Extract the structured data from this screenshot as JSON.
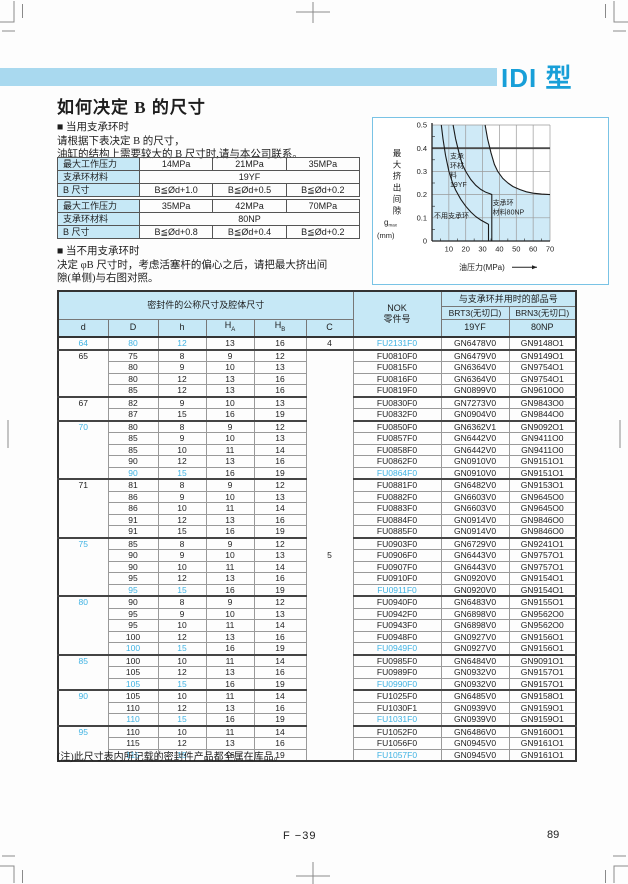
{
  "header": {
    "model": "IDI 型"
  },
  "texts": {
    "title": "如何决定 B 的尺寸",
    "bullet1": "■ 当用支承环时",
    "p1l1": "请根据下表决定 B 的尺寸，",
    "p1l2": "油缸的结构上需要较大的 B 尺寸时,请与本公司联系。",
    "bullet2": "■ 当不用支承环时",
    "p2l1": "决定 φB 尺寸时，考虑活塞杆的偏心之后，请把最大挤出间",
    "p2l2": "隙(单侧)与右图对照。",
    "note": "(注)此尺寸表内所记载的密封件产品都全属在库品。"
  },
  "pressure_tables": [
    {
      "rows": [
        {
          "label": "最大工作压力",
          "cells": [
            "14MPa",
            "21MPa",
            "35MPa"
          ]
        },
        {
          "label": "支承环材料",
          "cells": [
            "19YF"
          ],
          "span": 3
        },
        {
          "label": "B 尺寸",
          "cells": [
            "B≦Ød+1.0",
            "B≦Ød+0.5",
            "B≦Ød+0.2"
          ]
        }
      ]
    },
    {
      "rows": [
        {
          "label": "最大工作压力",
          "cells": [
            "35MPa",
            "42MPa",
            "70MPa"
          ]
        },
        {
          "label": "支承环材料",
          "cells": [
            "80NP"
          ],
          "span": 3
        },
        {
          "label": "B 尺寸",
          "cells": [
            "B≦Ød+0.8",
            "B≦Ød+0.4",
            "B≦Ød+0.2"
          ]
        }
      ]
    }
  ],
  "chart_data": {
    "type": "line",
    "xlabel": "油压力(MPa)",
    "ylabel_vertical": "最大挤出间隙",
    "ylabel_symbol": "g",
    "ylabel_symbol_sub": "max",
    "ylabel_unit": "(mm)",
    "xlim": [
      0,
      70
    ],
    "ylim": [
      0,
      0.5
    ],
    "xticks": [
      10,
      20,
      30,
      40,
      50,
      60,
      70
    ],
    "yticks": [
      0,
      0.1,
      0.2,
      0.3,
      0.4,
      0.5
    ],
    "grid": true,
    "series": [
      {
        "name": "不用支承环",
        "points": [
          [
            5.5,
            0.5
          ],
          [
            6.5,
            0.44
          ],
          [
            8,
            0.37
          ],
          [
            10,
            0.3
          ],
          [
            12,
            0.255
          ],
          [
            14,
            0.22
          ],
          [
            17,
            0.18
          ],
          [
            20,
            0.15
          ],
          [
            23,
            0.125
          ],
          [
            26,
            0.105
          ],
          [
            29,
            0.09
          ],
          [
            32,
            0.078
          ],
          [
            33.5,
            0.072
          ],
          [
            33.5,
            0
          ]
        ]
      },
      {
        "name": "支承环材料19YF",
        "points": [
          [
            12.5,
            0.5
          ],
          [
            14,
            0.44
          ],
          [
            16,
            0.38
          ],
          [
            18,
            0.33
          ],
          [
            20,
            0.3
          ],
          [
            23,
            0.265
          ],
          [
            26,
            0.24
          ],
          [
            29,
            0.222
          ],
          [
            32,
            0.21
          ],
          [
            35,
            0.202
          ],
          [
            35.5,
            0.2
          ],
          [
            35.5,
            0
          ]
        ]
      },
      {
        "name": "支承环材料80NP",
        "points": [
          [
            31.5,
            0.5
          ],
          [
            33,
            0.44
          ],
          [
            35,
            0.38
          ],
          [
            37,
            0.33
          ],
          [
            39,
            0.3
          ],
          [
            42,
            0.27
          ],
          [
            45,
            0.25
          ],
          [
            48,
            0.235
          ],
          [
            52,
            0.222
          ],
          [
            56,
            0.212
          ],
          [
            60,
            0.206
          ],
          [
            65,
            0.202
          ],
          [
            70,
            0.2
          ]
        ]
      }
    ],
    "labels": [
      {
        "lines": [
          "不用支承环"
        ],
        "x": 1.2,
        "y": 0.1
      },
      {
        "lines": [
          "支承",
          "环材",
          "料",
          "19YF"
        ],
        "x": 10.7,
        "y": 0.355
      },
      {
        "lines": [
          "支承环",
          "材料80NP"
        ],
        "x": 36,
        "y": 0.155
      }
    ]
  },
  "main_table": {
    "group_header_left": "密封件的公称尺寸及腔体尺寸",
    "nok_header_line1": "NOK",
    "nok_header_line2": "零件号",
    "group_header_right": "与支承环并用时的部品号",
    "sub_right": [
      "BRT3(无切口)",
      "BRN3(无切口)"
    ],
    "material_right": [
      "19YF",
      "80NP"
    ],
    "col_headers": [
      {
        "base": "d"
      },
      {
        "base": "D"
      },
      {
        "base": "h"
      },
      {
        "base": "H",
        "sub": "A"
      },
      {
        "base": "H",
        "sub": "B"
      },
      {
        "base": "C"
      }
    ],
    "c_col": {
      "first": "4",
      "merged": "5"
    },
    "rows": [
      {
        "d": "64",
        "db": 1,
        "gs": 1,
        "D": "80",
        "h": "12",
        "HA": "13",
        "HB": "16",
        "hl": 1,
        "p": "FU2131F0",
        "g1": "GN6478V0",
        "g2": "GN9148O1"
      },
      {
        "d": "65",
        "db": 0,
        "gs": 1,
        "D": "75",
        "h": "8",
        "HA": "9",
        "HB": "12",
        "hl": 0,
        "p": "FU0810F0",
        "g1": "GN6479V0",
        "g2": "GN9149O1"
      },
      {
        "D": "80",
        "h": "9",
        "HA": "10",
        "HB": "13",
        "hl": 0,
        "p": "FU0815F0",
        "g1": "GN6364V0",
        "g2": "GN9754O1"
      },
      {
        "D": "80",
        "h": "12",
        "HA": "13",
        "HB": "16",
        "hl": 0,
        "p": "FU0816F0",
        "g1": "GN6364V0",
        "g2": "GN9754O1"
      },
      {
        "D": "85",
        "h": "12",
        "HA": "13",
        "HB": "16",
        "hl": 0,
        "p": "FU0819F0",
        "g1": "GN0899V0",
        "g2": "GN9610O0"
      },
      {
        "d": "67",
        "db": 0,
        "gs": 1,
        "D": "82",
        "h": "9",
        "HA": "10",
        "HB": "13",
        "hl": 0,
        "p": "FU0830F0",
        "g1": "GN7273V0",
        "g2": "GN9843O0"
      },
      {
        "D": "87",
        "h": "15",
        "HA": "16",
        "HB": "19",
        "hl": 0,
        "p": "FU0832F0",
        "g1": "GN0904V0",
        "g2": "GN9844O0"
      },
      {
        "d": "70",
        "db": 1,
        "gs": 1,
        "D": "80",
        "h": "8",
        "HA": "9",
        "HB": "12",
        "hl": 0,
        "p": "FU0850F0",
        "g1": "GN6362V1",
        "g2": "GN9092O1"
      },
      {
        "D": "85",
        "h": "9",
        "HA": "10",
        "HB": "13",
        "hl": 0,
        "p": "FU0857F0",
        "g1": "GN6442V0",
        "g2": "GN9411O0"
      },
      {
        "D": "85",
        "h": "10",
        "HA": "11",
        "HB": "14",
        "hl": 0,
        "p": "FU0858F0",
        "g1": "GN6442V0",
        "g2": "GN9411O0"
      },
      {
        "D": "90",
        "h": "12",
        "HA": "13",
        "HB": "16",
        "hl": 0,
        "p": "FU0862F0",
        "g1": "GN0910V0",
        "g2": "GN9151O1"
      },
      {
        "D": "90",
        "h": "15",
        "HA": "16",
        "HB": "19",
        "hl": 1,
        "p": "FU0864F0",
        "g1": "GN0910V0",
        "g2": "GN9151O1"
      },
      {
        "d": "71",
        "db": 0,
        "gs": 1,
        "D": "81",
        "h": "8",
        "HA": "9",
        "HB": "12",
        "hl": 0,
        "p": "FU0881F0",
        "g1": "GN6482V0",
        "g2": "GN9153O1"
      },
      {
        "D": "86",
        "h": "9",
        "HA": "10",
        "HB": "13",
        "hl": 0,
        "p": "FU0882F0",
        "g1": "GN6603V0",
        "g2": "GN9645O0"
      },
      {
        "D": "86",
        "h": "10",
        "HA": "11",
        "HB": "14",
        "hl": 0,
        "p": "FU0883F0",
        "g1": "GN6603V0",
        "g2": "GN9645O0"
      },
      {
        "D": "91",
        "h": "12",
        "HA": "13",
        "HB": "16",
        "hl": 0,
        "p": "FU0884F0",
        "g1": "GN0914V0",
        "g2": "GN9846O0"
      },
      {
        "D": "91",
        "h": "15",
        "HA": "16",
        "HB": "19",
        "hl": 0,
        "p": "FU0885F0",
        "g1": "GN0914V0",
        "g2": "GN9846O0"
      },
      {
        "d": "75",
        "db": 1,
        "gs": 1,
        "D": "85",
        "h": "8",
        "HA": "9",
        "HB": "12",
        "hl": 0,
        "p": "FU0903F0",
        "g1": "GN6729V0",
        "g2": "GN9241O1"
      },
      {
        "D": "90",
        "h": "9",
        "HA": "10",
        "HB": "13",
        "hl": 0,
        "p": "FU0906F0",
        "g1": "GN6443V0",
        "g2": "GN9757O1"
      },
      {
        "D": "90",
        "h": "10",
        "HA": "11",
        "HB": "14",
        "hl": 0,
        "p": "FU0907F0",
        "g1": "GN6443V0",
        "g2": "GN9757O1"
      },
      {
        "D": "95",
        "h": "12",
        "HA": "13",
        "HB": "16",
        "hl": 0,
        "p": "FU0910F0",
        "g1": "GN0920V0",
        "g2": "GN9154O1"
      },
      {
        "D": "95",
        "h": "15",
        "HA": "16",
        "HB": "19",
        "hl": 1,
        "p": "FU0911F0",
        "g1": "GN0920V0",
        "g2": "GN9154O1"
      },
      {
        "d": "80",
        "db": 1,
        "gs": 1,
        "D": "90",
        "h": "8",
        "HA": "9",
        "HB": "12",
        "hl": 0,
        "p": "FU0940F0",
        "g1": "GN6483V0",
        "g2": "GN9155O1"
      },
      {
        "D": "95",
        "h": "9",
        "HA": "10",
        "HB": "13",
        "hl": 0,
        "p": "FU0942F0",
        "g1": "GN6898V0",
        "g2": "GN9562O0"
      },
      {
        "D": "95",
        "h": "10",
        "HA": "11",
        "HB": "14",
        "hl": 0,
        "p": "FU0943F0",
        "g1": "GN6898V0",
        "g2": "GN9562O0"
      },
      {
        "D": "100",
        "h": "12",
        "HA": "13",
        "HB": "16",
        "hl": 0,
        "p": "FU0948F0",
        "g1": "GN0927V0",
        "g2": "GN9156O1"
      },
      {
        "D": "100",
        "h": "15",
        "HA": "16",
        "HB": "19",
        "hl": 1,
        "p": "FU0949F0",
        "g1": "GN0927V0",
        "g2": "GN9156O1"
      },
      {
        "d": "85",
        "db": 1,
        "gs": 1,
        "D": "100",
        "h": "10",
        "HA": "11",
        "HB": "14",
        "hl": 0,
        "p": "FU0985F0",
        "g1": "GN6484V0",
        "g2": "GN9091O1"
      },
      {
        "D": "105",
        "h": "12",
        "HA": "13",
        "HB": "16",
        "hl": 0,
        "p": "FU0989F0",
        "g1": "GN0932V0",
        "g2": "GN9157O1"
      },
      {
        "D": "105",
        "h": "15",
        "HA": "16",
        "HB": "19",
        "hl": 1,
        "p": "FU0990F0",
        "g1": "GN0932V0",
        "g2": "GN9157O1"
      },
      {
        "d": "90",
        "db": 1,
        "gs": 1,
        "D": "105",
        "h": "10",
        "HA": "11",
        "HB": "14",
        "hl": 0,
        "p": "FU1025F0",
        "g1": "GN6485V0",
        "g2": "GN9158O1"
      },
      {
        "D": "110",
        "h": "12",
        "HA": "13",
        "HB": "16",
        "hl": 0,
        "p": "FU1030F1",
        "g1": "GN0939V0",
        "g2": "GN9159O1"
      },
      {
        "D": "110",
        "h": "15",
        "HA": "16",
        "HB": "19",
        "hl": 1,
        "p": "FU1031F0",
        "g1": "GN0939V0",
        "g2": "GN9159O1"
      },
      {
        "d": "95",
        "db": 1,
        "gs": 1,
        "D": "110",
        "h": "10",
        "HA": "11",
        "HB": "14",
        "hl": 0,
        "p": "FU1052F0",
        "g1": "GN6486V0",
        "g2": "GN9160O1"
      },
      {
        "D": "115",
        "h": "12",
        "HA": "13",
        "HB": "16",
        "hl": 0,
        "p": "FU1056F0",
        "g1": "GN0945V0",
        "g2": "GN9161O1"
      },
      {
        "D": "115",
        "h": "15",
        "HA": "16",
        "HB": "19",
        "hl": 1,
        "p": "FU1057F0",
        "g1": "GN0945V0",
        "g2": "GN9161O1"
      }
    ]
  },
  "footer": {
    "center": "F −39",
    "page": "89"
  },
  "colors": {
    "cyan_bar": "#a9d9ef",
    "model_text": "#189fd8",
    "header_cell_bg": "#c6e8f6",
    "highlight_text": "#41b3e3",
    "chart_shade": "#cfeaf7"
  }
}
